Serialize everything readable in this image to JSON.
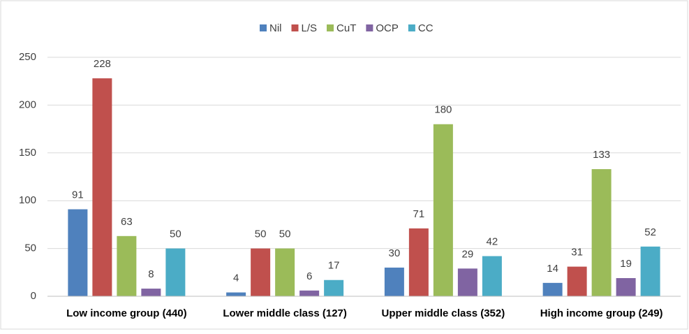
{
  "chart_data": {
    "type": "bar",
    "categories": [
      "Low income group (440)",
      "Lower middle class (127)",
      "Upper middle class (352)",
      "High income group (249)"
    ],
    "series": [
      {
        "name": "Nil",
        "color": "#4f81bd",
        "values": [
          91,
          4,
          30,
          14
        ]
      },
      {
        "name": "L/S",
        "color": "#c0504d",
        "values": [
          228,
          50,
          71,
          31
        ]
      },
      {
        "name": "CuT",
        "color": "#9bbb59",
        "values": [
          63,
          50,
          180,
          133
        ]
      },
      {
        "name": "OCP",
        "color": "#8064a2",
        "values": [
          8,
          6,
          29,
          19
        ]
      },
      {
        "name": "CC",
        "color": "#4bacc6",
        "values": [
          50,
          17,
          42,
          52
        ]
      }
    ],
    "ylim": [
      0,
      250
    ],
    "yticks": [
      0,
      50,
      100,
      150,
      200,
      250
    ],
    "grid": true,
    "legend": "top"
  }
}
